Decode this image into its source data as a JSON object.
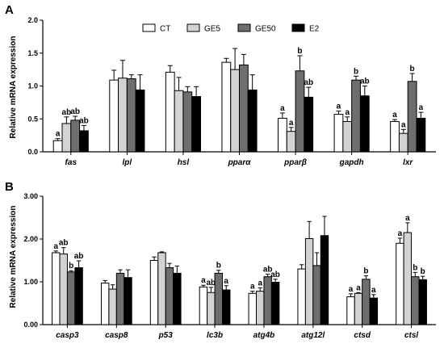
{
  "legend": {
    "series": [
      "CT",
      "GE5",
      "GE50",
      "E2"
    ],
    "colors": [
      "#ffffff",
      "#d3d3d3",
      "#6e6e6e",
      "#000000"
    ]
  },
  "chart_data": [
    {
      "panel": "A",
      "type": "bar",
      "ylabel": "Relative mRNA expression",
      "ylim": [
        0,
        2.0
      ],
      "yticks": [
        "0.0",
        "0.5",
        "1.0",
        "1.5",
        "2.0"
      ],
      "categories": [
        "fas",
        "lpl",
        "hsl",
        "pparα",
        "pparβ",
        "gapdh",
        "lxr"
      ],
      "series": [
        {
          "name": "CT",
          "values": [
            0.17,
            1.09,
            1.21,
            1.36,
            0.51,
            0.57,
            0.46
          ],
          "errors": [
            0.03,
            0.15,
            0.1,
            0.06,
            0.08,
            0.05,
            0.03
          ]
        },
        {
          "name": "GE5",
          "values": [
            0.43,
            1.12,
            0.93,
            1.25,
            0.31,
            0.46,
            0.28
          ],
          "errors": [
            0.1,
            0.27,
            0.2,
            0.32,
            0.06,
            0.07,
            0.06
          ]
        },
        {
          "name": "GE50",
          "values": [
            0.48,
            1.11,
            0.91,
            1.32,
            1.23,
            1.09,
            1.07
          ],
          "errors": [
            0.06,
            0.06,
            0.08,
            0.16,
            0.23,
            0.06,
            0.12
          ]
        },
        {
          "name": "E2",
          "values": [
            0.32,
            0.94,
            0.84,
            0.94,
            0.83,
            0.85,
            0.51
          ],
          "errors": [
            0.08,
            0.23,
            0.15,
            0.23,
            0.15,
            0.15,
            0.09
          ]
        }
      ],
      "significance": [
        [
          "a",
          "",
          "",
          "",
          "a",
          "a",
          "a"
        ],
        [
          "ab",
          "",
          "",
          "",
          "a",
          "a",
          "a"
        ],
        [
          "ab",
          "",
          "",
          "",
          "b",
          "b",
          "b"
        ],
        [
          "ab",
          "",
          "",
          "",
          "ab",
          "ab",
          "a"
        ]
      ]
    },
    {
      "panel": "B",
      "type": "bar",
      "ylabel": "Relative mRNA expression",
      "ylim": [
        0,
        3.0
      ],
      "yticks": [
        "0.00",
        "1.00",
        "2.00",
        "3.00"
      ],
      "categories": [
        "casp3",
        "casp8",
        "p53",
        "lc3b",
        "atg4b",
        "atg12l",
        "ctsd",
        "ctsl"
      ],
      "series": [
        {
          "name": "CT",
          "values": [
            1.68,
            0.97,
            1.5,
            0.88,
            0.73,
            1.3,
            0.65,
            1.9
          ],
          "errors": [
            0.04,
            0.06,
            0.08,
            0.04,
            0.05,
            0.1,
            0.07,
            0.12
          ]
        },
        {
          "name": "GE5",
          "values": [
            1.65,
            0.83,
            1.68,
            0.75,
            0.78,
            2.01,
            0.73,
            2.15
          ],
          "errors": [
            0.15,
            0.1,
            0.02,
            0.12,
            0.08,
            0.4,
            0.02,
            0.23
          ]
        },
        {
          "name": "GE50",
          "values": [
            1.23,
            1.2,
            1.33,
            1.2,
            1.12,
            1.38,
            1.06,
            1.12
          ],
          "errors": [
            0.03,
            0.08,
            0.1,
            0.07,
            0.06,
            0.3,
            0.08,
            0.1
          ]
        },
        {
          "name": "E2",
          "values": [
            1.33,
            1.1,
            1.2,
            0.81,
            0.99,
            2.08,
            0.62,
            1.05
          ],
          "errors": [
            0.16,
            0.18,
            0.17,
            0.1,
            0.07,
            0.45,
            0.08,
            0.08
          ]
        }
      ],
      "significance": [
        [
          "a",
          "",
          "",
          "a",
          "a",
          "",
          "a",
          "a"
        ],
        [
          "ab",
          "",
          "",
          "ab",
          "a",
          "",
          "a",
          "a"
        ],
        [
          "b",
          "",
          "",
          "b",
          "ab",
          "",
          "b",
          "b"
        ],
        [
          "ab",
          "",
          "",
          "a",
          "ab",
          "",
          "a",
          "b"
        ]
      ]
    }
  ]
}
